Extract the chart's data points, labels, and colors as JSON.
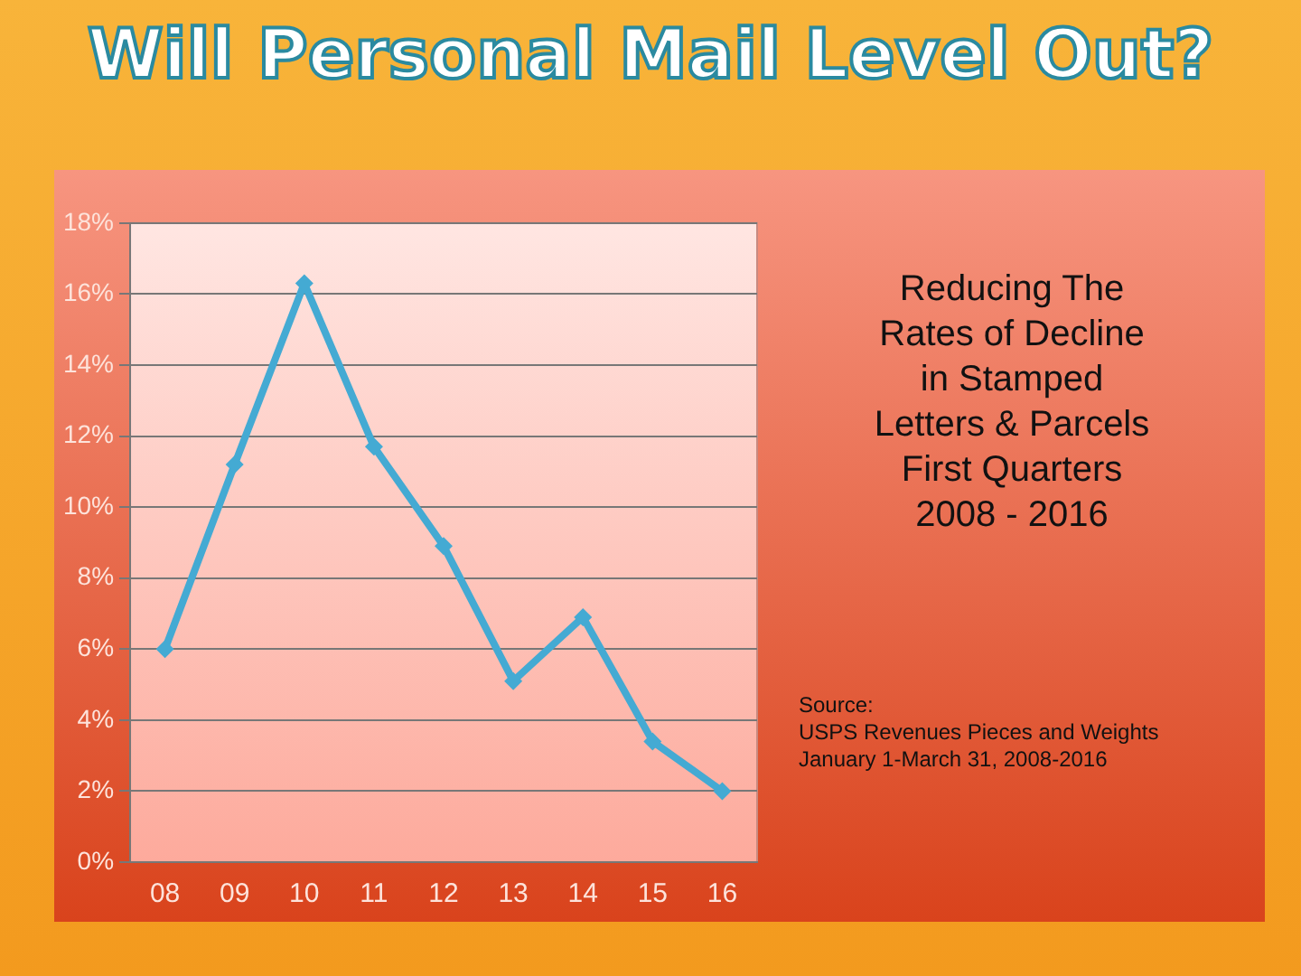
{
  "chart_data": {
    "type": "line",
    "title": "Will Personal Mail Level Out?",
    "subtitle": "Reducing The\nRates of Decline\nin Stamped\nLetters & Parcels\nFirst Quarters\n2008 - 2016",
    "annotations": [
      "Source:\nUSPS Revenues Pieces and Weights\nJanuary 1-March 31, 2008-2016"
    ],
    "categories": [
      "08",
      "09",
      "10",
      "11",
      "12",
      "13",
      "14",
      "15",
      "16"
    ],
    "series": [
      {
        "color": "#44aad3",
        "values": [
          6.0,
          11.2,
          16.3,
          11.7,
          8.9,
          5.1,
          6.9,
          3.4,
          2.0
        ]
      }
    ],
    "ylim": [
      0,
      18
    ],
    "yticks": [
      {
        "value": 0,
        "label": "0%"
      },
      {
        "value": 2,
        "label": "2%"
      },
      {
        "value": 4,
        "label": "4%"
      },
      {
        "value": 6,
        "label": "6%"
      },
      {
        "value": 8,
        "label": "8%"
      },
      {
        "value": 10,
        "label": "10%"
      },
      {
        "value": 12,
        "label": "12%"
      },
      {
        "value": 14,
        "label": "14%"
      },
      {
        "value": 16,
        "label": "16%"
      },
      {
        "value": 18,
        "label": "18%"
      }
    ],
    "grid": "y",
    "marker": "diamond",
    "line_style": "solid",
    "legend": false
  }
}
